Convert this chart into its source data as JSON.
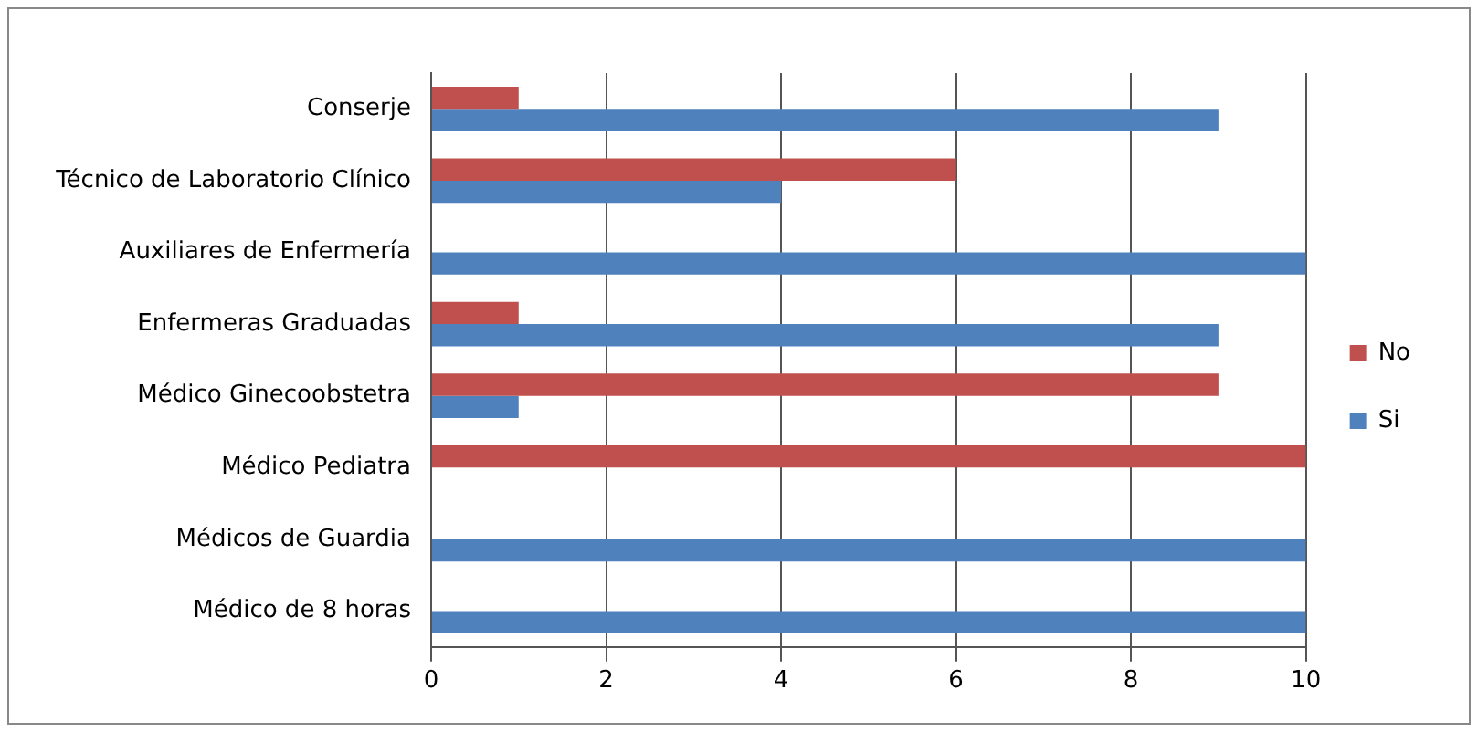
{
  "chart_data": {
    "type": "bar",
    "orientation": "horizontal",
    "categories": [
      "Conserje",
      "Técnico de Laboratorio Clínico",
      "Auxiliares de Enfermería",
      "Enfermeras Graduadas",
      "Médico Ginecoobstetra",
      "Médico Pediatra",
      "Médicos de Guardia",
      "Médico de 8 horas"
    ],
    "series": [
      {
        "name": "No",
        "color": "#c0504d",
        "values": [
          1,
          6,
          0,
          1,
          9,
          10,
          0,
          0
        ]
      },
      {
        "name": "Si",
        "color": "#4f81bd",
        "values": [
          9,
          4,
          10,
          9,
          1,
          0,
          10,
          10
        ]
      }
    ],
    "xlim": [
      0,
      10
    ],
    "xticks": [
      0,
      2,
      4,
      6,
      8,
      10
    ],
    "grid": "x",
    "legend": "right"
  }
}
